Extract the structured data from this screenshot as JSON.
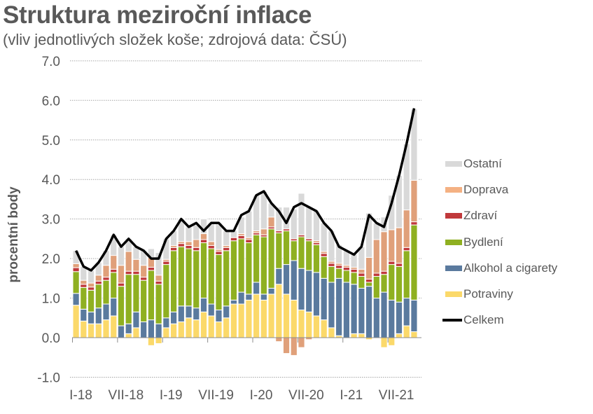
{
  "title": "Struktura meziroční inflace",
  "subtitle": "(vliv jednotlivých složek koše; zdrojová data: ČSÚ)",
  "chart_data": {
    "type": "bar",
    "stacked": true,
    "title": "Struktura meziroční inflace",
    "subtitle": "(vliv jednotlivých složek koše; zdrojová data: ČSÚ)",
    "xlabel": "",
    "ylabel": "procentní body",
    "ylim": [
      -1.0,
      7.0
    ],
    "yticks": [
      "7.0",
      "6.0",
      "5.0",
      "4.0",
      "3.0",
      "2.0",
      "1.0",
      "0.0",
      "-1.0"
    ],
    "xtick_labels": [
      "I-18",
      "VII-18",
      "I-19",
      "VII-19",
      "I-20",
      "VII-20",
      "I-21",
      "VII-21"
    ],
    "grid": "horizontal dotted",
    "legend_position": "right",
    "categories": [
      "I-18",
      "II-18",
      "III-18",
      "IV-18",
      "V-18",
      "VI-18",
      "VII-18",
      "VIII-18",
      "IX-18",
      "X-18",
      "XI-18",
      "XII-18",
      "I-19",
      "II-19",
      "III-19",
      "IV-19",
      "V-19",
      "VI-19",
      "VII-19",
      "VIII-19",
      "IX-19",
      "X-19",
      "XI-19",
      "XII-19",
      "I-20",
      "II-20",
      "III-20",
      "IV-20",
      "V-20",
      "VI-20",
      "VII-20",
      "VIII-20",
      "IX-20",
      "X-20",
      "XI-20",
      "XII-20",
      "I-21",
      "II-21",
      "III-21",
      "IV-21",
      "V-21",
      "VI-21",
      "VII-21",
      "VIII-21",
      "IX-21",
      "X-21"
    ],
    "series": [
      {
        "name": "Potraviny",
        "color": "#fbd96a",
        "values": [
          0.82,
          0.42,
          0.35,
          0.35,
          0.45,
          0.55,
          0.0,
          0.1,
          0.25,
          0.0,
          -0.2,
          -0.15,
          0.25,
          0.35,
          0.4,
          0.5,
          0.45,
          0.65,
          0.55,
          0.4,
          0.5,
          0.85,
          0.85,
          0.95,
          1.1,
          0.95,
          1.1,
          1.35,
          1.1,
          0.95,
          0.7,
          0.65,
          0.55,
          0.45,
          0.25,
          0.05,
          0.0,
          0.1,
          0.1,
          -0.05,
          0.0,
          -0.25,
          -0.2,
          0.1,
          0.3,
          0.15
        ]
      },
      {
        "name": "Alkohol a cigarety",
        "color": "#5a7a9e",
        "values": [
          0.3,
          0.3,
          0.3,
          0.4,
          0.4,
          0.45,
          0.3,
          0.25,
          0.4,
          0.4,
          0.45,
          0.35,
          0.25,
          0.3,
          0.4,
          0.3,
          0.3,
          0.35,
          0.3,
          0.3,
          0.3,
          0.1,
          0.3,
          0.15,
          0.3,
          0.15,
          0.15,
          0.4,
          0.75,
          1.0,
          1.05,
          1.05,
          1.1,
          1.05,
          1.15,
          1.45,
          1.4,
          1.25,
          1.15,
          1.3,
          1.0,
          1.15,
          0.95,
          0.8,
          0.7,
          0.8
        ]
      },
      {
        "name": "Bydlení",
        "color": "#8fb021",
        "values": [
          0.55,
          0.55,
          0.55,
          0.6,
          0.6,
          0.65,
          1.0,
          1.25,
          0.95,
          1.05,
          1.25,
          1.0,
          1.35,
          1.55,
          1.5,
          1.45,
          1.45,
          1.4,
          1.4,
          1.4,
          1.4,
          1.5,
          1.35,
          1.3,
          1.2,
          1.45,
          1.5,
          0.9,
          0.85,
          0.5,
          0.8,
          0.75,
          0.7,
          0.55,
          0.4,
          0.25,
          0.3,
          0.3,
          0.3,
          0.1,
          0.55,
          0.45,
          0.9,
          0.9,
          1.2,
          1.9
        ]
      },
      {
        "name": "Zdraví",
        "color": "#c0393b",
        "values": [
          0.1,
          0.08,
          0.08,
          0.08,
          0.08,
          0.08,
          0.08,
          0.08,
          0.08,
          0.08,
          0.08,
          0.08,
          0.08,
          0.08,
          0.08,
          0.08,
          0.08,
          0.08,
          0.08,
          0.08,
          0.08,
          0.08,
          0.08,
          0.08,
          0.05,
          0.05,
          0.05,
          0.05,
          0.05,
          0.05,
          0.05,
          0.05,
          0.05,
          0.08,
          0.08,
          0.08,
          0.08,
          0.08,
          0.08,
          0.08,
          0.08,
          0.08,
          0.08,
          0.08,
          0.08,
          0.08
        ]
      },
      {
        "name": "Doprava",
        "color": "#e0a07a",
        "values": [
          0.1,
          0.1,
          0.1,
          0.15,
          0.3,
          0.35,
          0.45,
          0.5,
          0.3,
          0.3,
          0.25,
          0.15,
          0.05,
          0.05,
          0.05,
          0.1,
          0.2,
          0.15,
          0.1,
          0.05,
          0.05,
          0.0,
          0.05,
          0.05,
          0.05,
          0.15,
          0.25,
          -0.1,
          -0.4,
          -0.45,
          -0.25,
          -0.05,
          0.05,
          0.05,
          0.05,
          0.05,
          0.05,
          0.05,
          0.1,
          0.55,
          0.85,
          1.0,
          0.8,
          0.9,
          0.95,
          1.05
        ]
      },
      {
        "name": "Ostatní",
        "color": "#d9d9d9",
        "values": [
          0.33,
          0.35,
          0.32,
          0.32,
          0.37,
          0.52,
          0.47,
          0.32,
          0.32,
          0.37,
          0.22,
          0.57,
          0.52,
          0.37,
          0.57,
          0.37,
          0.37,
          0.37,
          0.47,
          0.67,
          0.37,
          0.17,
          0.42,
          0.67,
          0.9,
          0.95,
          0.35,
          0.6,
          0.55,
          0.75,
          1.05,
          0.8,
          0.75,
          0.72,
          0.77,
          0.47,
          0.37,
          0.32,
          0.57,
          1.12,
          0.42,
          0.37,
          0.87,
          1.32,
          1.67,
          1.8
        ]
      },
      {
        "name": "Celkem",
        "type": "line",
        "color": "#000000",
        "values": [
          2.2,
          1.8,
          1.7,
          1.9,
          2.2,
          2.6,
          2.3,
          2.5,
          2.3,
          2.2,
          2.0,
          2.0,
          2.5,
          2.7,
          3.0,
          2.8,
          2.9,
          2.7,
          2.9,
          2.9,
          2.7,
          2.7,
          3.1,
          3.2,
          3.6,
          3.7,
          3.4,
          3.2,
          2.9,
          3.3,
          3.4,
          3.3,
          3.2,
          2.9,
          2.7,
          2.3,
          2.2,
          2.1,
          2.3,
          3.1,
          2.9,
          2.8,
          3.4,
          4.1,
          4.9,
          5.8
        ]
      }
    ]
  },
  "legend": {
    "items": [
      {
        "label": "Ostatní",
        "color": "#d9d9d9"
      },
      {
        "label": "Doprava",
        "color": "#f4b183"
      },
      {
        "label": "Zdraví",
        "color": "#c0393b"
      },
      {
        "label": "Bydlení",
        "color": "#8fb021"
      },
      {
        "label": "Alkohol a cigarety",
        "color": "#5a7a9e"
      },
      {
        "label": "Potraviny",
        "color": "#fbd96a"
      },
      {
        "label": "Celkem",
        "color": "#000000",
        "line": true
      }
    ]
  }
}
